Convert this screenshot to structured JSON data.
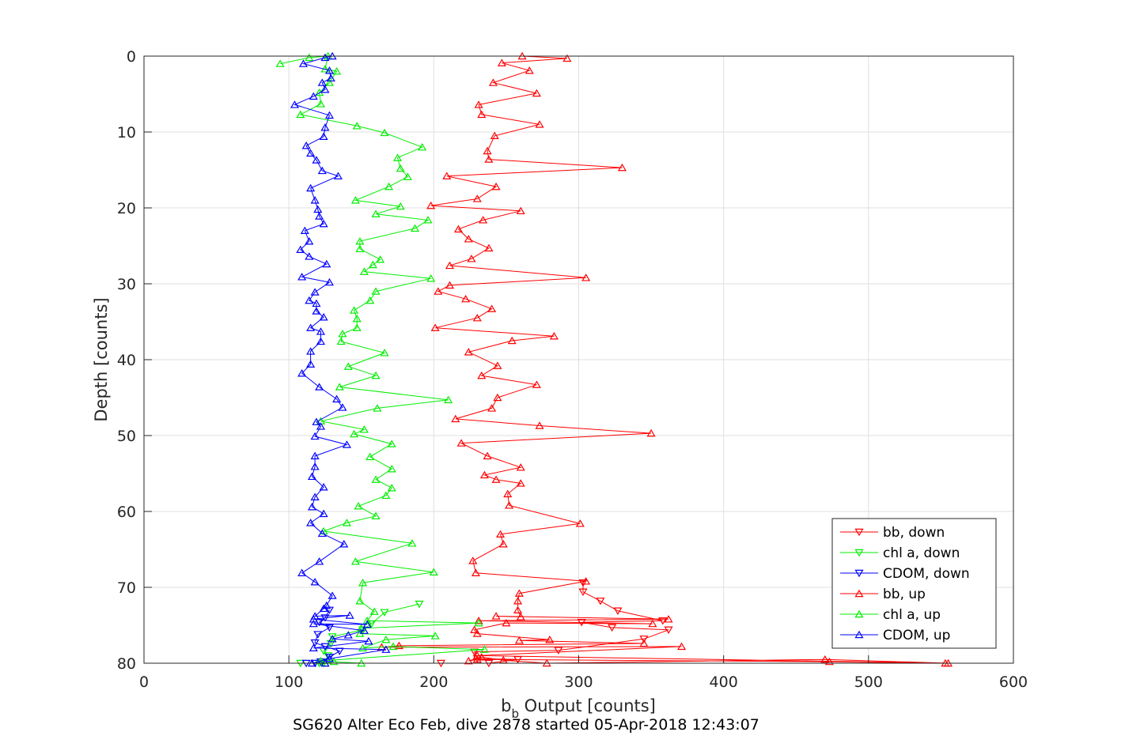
{
  "chart_data": {
    "type": "line",
    "xlabel_main": "b",
    "xlabel_sub": "b",
    "xlabel_rest": " Output [counts]",
    "ylabel": "Depth [counts]",
    "caption": "SG620 Alter Eco Feb, dive 2878 started 05-Apr-2018 12:43:07",
    "xlim": [
      0,
      600
    ],
    "ylim": [
      0,
      80
    ],
    "y_reversed": true,
    "x_ticks": [
      0,
      100,
      200,
      300,
      400,
      500,
      600
    ],
    "y_ticks": [
      0,
      10,
      20,
      30,
      40,
      50,
      60,
      70,
      80
    ],
    "grid": true,
    "legend_position": "bottom-right",
    "series": [
      {
        "name": "bb, down",
        "color": "#ff0000",
        "marker": "triangle-down",
        "points": [
          [
            205,
            80
          ],
          [
            238,
            80
          ],
          [
            258,
            79.5
          ],
          [
            230,
            79.4
          ],
          [
            228,
            78.5
          ],
          [
            286,
            78.3
          ],
          [
            345,
            76.8
          ],
          [
            362,
            75.6
          ],
          [
            323,
            75.3
          ],
          [
            302,
            74.6
          ],
          [
            358,
            74.4
          ],
          [
            327,
            73.1
          ],
          [
            315,
            71.8
          ],
          [
            303,
            70.6
          ],
          [
            303,
            69.4
          ]
        ]
      },
      {
        "name": "chl a, down",
        "color": "#00ee00",
        "marker": "triangle-down",
        "points": [
          [
            108,
            80
          ],
          [
            121,
            80
          ],
          [
            124,
            80
          ],
          [
            127,
            79
          ],
          [
            124,
            78.4
          ],
          [
            129,
            77.4
          ],
          [
            130,
            76.5
          ],
          [
            151,
            75.6
          ],
          [
            157,
            74.8
          ],
          [
            166,
            73.3
          ],
          [
            190,
            72.2
          ]
        ]
      },
      {
        "name": "CDOM, down",
        "color": "#0000ff",
        "marker": "triangle-down",
        "points": [
          [
            112,
            80
          ],
          [
            118,
            80
          ],
          [
            122,
            79.8
          ],
          [
            128,
            79.2
          ],
          [
            135,
            78.4
          ],
          [
            125,
            77.8
          ],
          [
            118,
            77.3
          ],
          [
            120,
            76.2
          ],
          [
            128,
            75.3
          ],
          [
            121,
            74.6
          ],
          [
            125,
            74
          ],
          [
            128,
            73
          ]
        ]
      },
      {
        "name": "bb, up",
        "color": "#ff0000",
        "marker": "triangle-up",
        "points": [
          [
            553,
            80
          ],
          [
            473,
            79.8
          ],
          [
            230,
            79.5
          ],
          [
            224,
            79.7
          ],
          [
            233,
            79.2
          ],
          [
            248,
            79.6
          ],
          [
            278,
            80
          ],
          [
            470,
            79.5
          ],
          [
            555,
            80
          ],
          [
            230,
            79
          ],
          [
            371,
            77.8
          ],
          [
            164,
            77.9
          ],
          [
            176,
            77.7
          ],
          [
            345,
            77.4
          ],
          [
            259,
            77
          ],
          [
            280,
            76.9
          ],
          [
            230,
            76.1
          ],
          [
            228,
            75.6
          ],
          [
            250,
            74.7
          ],
          [
            351,
            74.8
          ],
          [
            231,
            74.4
          ],
          [
            362,
            74.2
          ],
          [
            243,
            73.8
          ],
          [
            260,
            73.9
          ],
          [
            258,
            73
          ],
          [
            258,
            71.8
          ],
          [
            259,
            70.8
          ],
          [
            305,
            69.2
          ],
          [
            229,
            68.1
          ],
          [
            227,
            66.5
          ],
          [
            248,
            64.3
          ],
          [
            246,
            63
          ],
          [
            301,
            61.6
          ],
          [
            252,
            59.2
          ],
          [
            251,
            57.7
          ],
          [
            260,
            56.3
          ],
          [
            243,
            55.8
          ],
          [
            235,
            55.2
          ],
          [
            260,
            54.2
          ],
          [
            237,
            52.7
          ],
          [
            219,
            51
          ],
          [
            350,
            49.7
          ],
          [
            273,
            48.7
          ],
          [
            215,
            47.8
          ],
          [
            240,
            46.4
          ],
          [
            244,
            45
          ],
          [
            271,
            43.3
          ],
          [
            233,
            42.1
          ],
          [
            244,
            40.8
          ],
          [
            224,
            39
          ],
          [
            254,
            37.5
          ],
          [
            283,
            36.9
          ],
          [
            201,
            35.8
          ],
          [
            230,
            34.5
          ],
          [
            240,
            33.3
          ],
          [
            222,
            32
          ],
          [
            203,
            31
          ],
          [
            211,
            30.2
          ],
          [
            305,
            29.2
          ],
          [
            211,
            27.6
          ],
          [
            226,
            26.7
          ],
          [
            238,
            25.3
          ],
          [
            224,
            24.1
          ],
          [
            217,
            22.8
          ],
          [
            234,
            21.6
          ],
          [
            260,
            20.4
          ],
          [
            198,
            19.7
          ],
          [
            230,
            18.8
          ],
          [
            243,
            17.2
          ],
          [
            209,
            15.8
          ],
          [
            330,
            14.7
          ],
          [
            238,
            13.6
          ],
          [
            237,
            12.5
          ],
          [
            242,
            10.5
          ],
          [
            273,
            9
          ],
          [
            233,
            7.7
          ],
          [
            231,
            6.4
          ],
          [
            271,
            4.9
          ],
          [
            241,
            3.5
          ],
          [
            266,
            1.9
          ],
          [
            247,
            0.9
          ],
          [
            292,
            0.3
          ],
          [
            261,
            0
          ]
        ]
      },
      {
        "name": "chl a, up",
        "color": "#00ee00",
        "marker": "triangle-up",
        "points": [
          [
            150,
            80
          ],
          [
            131,
            79.8
          ],
          [
            125,
            80
          ],
          [
            122,
            79.7
          ],
          [
            235,
            78.2
          ],
          [
            172,
            77.8
          ],
          [
            151,
            78
          ],
          [
            167,
            76.9
          ],
          [
            201,
            76.4
          ],
          [
            149,
            76.1
          ],
          [
            150,
            75.4
          ],
          [
            231,
            74.7
          ],
          [
            154,
            74.4
          ],
          [
            159,
            73.2
          ],
          [
            149,
            71.8
          ],
          [
            151,
            69.4
          ],
          [
            200,
            68
          ],
          [
            146,
            66.6
          ],
          [
            185,
            64.2
          ],
          [
            124,
            62.6
          ],
          [
            140,
            61.5
          ],
          [
            160,
            60.6
          ],
          [
            148,
            59.3
          ],
          [
            167,
            57.9
          ],
          [
            171,
            56.9
          ],
          [
            160,
            55.8
          ],
          [
            171,
            54.4
          ],
          [
            156,
            52.8
          ],
          [
            171,
            51.1
          ],
          [
            145,
            49.8
          ],
          [
            152,
            49.2
          ],
          [
            122,
            48.1
          ],
          [
            161,
            46.4
          ],
          [
            210,
            45.3
          ],
          [
            135,
            43.6
          ],
          [
            160,
            42.1
          ],
          [
            141,
            40.9
          ],
          [
            166,
            39.1
          ],
          [
            136,
            37.6
          ],
          [
            137,
            36.6
          ],
          [
            147,
            35.8
          ],
          [
            147,
            34.6
          ],
          [
            145,
            33.5
          ],
          [
            156,
            32.2
          ],
          [
            160,
            31
          ],
          [
            198,
            29.3
          ],
          [
            152,
            28.4
          ],
          [
            158,
            27.5
          ],
          [
            163,
            26.8
          ],
          [
            149,
            25.4
          ],
          [
            149,
            24.4
          ],
          [
            187,
            22.7
          ],
          [
            196,
            21.6
          ],
          [
            160,
            20.8
          ],
          [
            177,
            19.8
          ],
          [
            146,
            19
          ],
          [
            169,
            17.2
          ],
          [
            182,
            15.9
          ],
          [
            177,
            14.8
          ],
          [
            175,
            13.4
          ],
          [
            192,
            12
          ],
          [
            166,
            10.1
          ],
          [
            147,
            9.2
          ],
          [
            108,
            7.7
          ],
          [
            122,
            6.3
          ],
          [
            121,
            4.8
          ],
          [
            128,
            3.5
          ],
          [
            133,
            2
          ],
          [
            125,
            1.7
          ],
          [
            127,
            0
          ],
          [
            114,
            0.2
          ],
          [
            94,
            1
          ]
        ]
      },
      {
        "name": "CDOM, up",
        "color": "#0000ff",
        "marker": "triangle-up",
        "points": [
          [
            125,
            80
          ],
          [
            116,
            80
          ],
          [
            128,
            79.4
          ],
          [
            167,
            78.2
          ],
          [
            117,
            78
          ],
          [
            155,
            77.1
          ],
          [
            130,
            76.8
          ],
          [
            141,
            76.3
          ],
          [
            152,
            75.7
          ],
          [
            117,
            74.8
          ],
          [
            154,
            74.9
          ],
          [
            117,
            74.2
          ],
          [
            142,
            73.7
          ],
          [
            118,
            73.8
          ],
          [
            124,
            72.8
          ],
          [
            126,
            72.4
          ],
          [
            130,
            71.1
          ],
          [
            118,
            69.3
          ],
          [
            109,
            68.1
          ],
          [
            121,
            66.6
          ],
          [
            138,
            64.3
          ],
          [
            123,
            62.9
          ],
          [
            115,
            61.5
          ],
          [
            124,
            60.3
          ],
          [
            116,
            59.4
          ],
          [
            118,
            58.1
          ],
          [
            124,
            56.8
          ],
          [
            116,
            55.4
          ],
          [
            118,
            54.1
          ],
          [
            118,
            52.7
          ],
          [
            140,
            51.2
          ],
          [
            118,
            50.1
          ],
          [
            122,
            48.8
          ],
          [
            119,
            48.2
          ],
          [
            137,
            46.3
          ],
          [
            133,
            45.2
          ],
          [
            121,
            43.6
          ],
          [
            109,
            41.8
          ],
          [
            115,
            40.6
          ],
          [
            115,
            38.9
          ],
          [
            122,
            37.6
          ],
          [
            122,
            36.3
          ],
          [
            115,
            35.8
          ],
          [
            124,
            34.4
          ],
          [
            119,
            33.6
          ],
          [
            119,
            32.6
          ],
          [
            114,
            32.2
          ],
          [
            118,
            31.1
          ],
          [
            128,
            29.8
          ],
          [
            109,
            29.1
          ],
          [
            126,
            27.4
          ],
          [
            114,
            26.4
          ],
          [
            108,
            25.5
          ],
          [
            114,
            24.4
          ],
          [
            111,
            23
          ],
          [
            124,
            22.1
          ],
          [
            121,
            21.1
          ],
          [
            120,
            20.2
          ],
          [
            118,
            19
          ],
          [
            115,
            17.4
          ],
          [
            134,
            15.8
          ],
          [
            123,
            15.1
          ],
          [
            119,
            13.7
          ],
          [
            115,
            12.8
          ],
          [
            112,
            11.8
          ],
          [
            124,
            10.6
          ],
          [
            125,
            9.4
          ],
          [
            128,
            7.8
          ],
          [
            104,
            6.4
          ],
          [
            117,
            5.3
          ],
          [
            125,
            4.4
          ],
          [
            123,
            3.5
          ],
          [
            129,
            2.9
          ],
          [
            128,
            1.9
          ],
          [
            110,
            1
          ],
          [
            125,
            0.2
          ],
          [
            130,
            0
          ]
        ]
      }
    ]
  }
}
